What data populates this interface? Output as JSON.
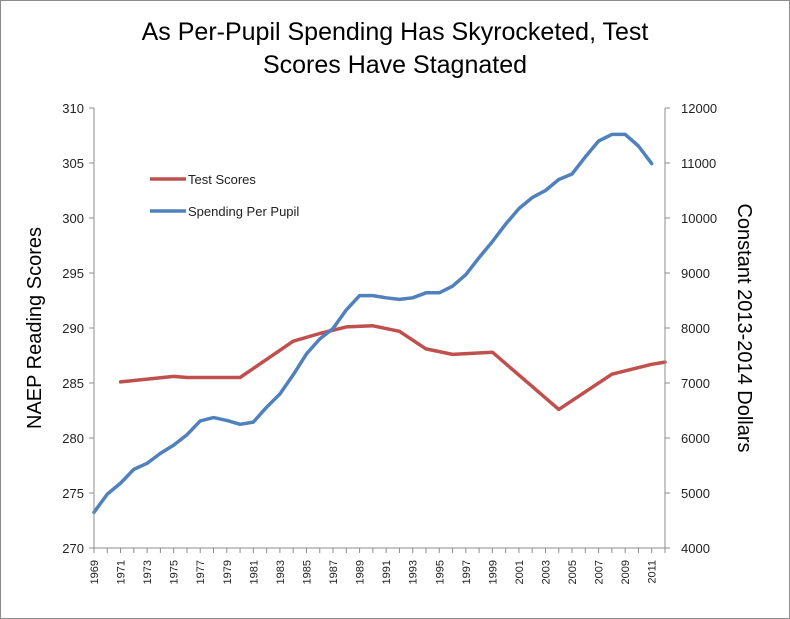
{
  "chart_data": {
    "type": "line",
    "title_lines": [
      "As Per-Pupil Spending Has Skyrocketed, Test",
      "Scores Have Stagnated"
    ],
    "ylabel_left": "NAEP Reading Scores",
    "ylabel_right": "Constant 2013-2014 Dollars",
    "ylim_left": [
      270,
      310
    ],
    "ylim_right": [
      4000,
      12000
    ],
    "yticks_left": [
      "270",
      "275",
      "280",
      "285",
      "290",
      "295",
      "300",
      "305",
      "310"
    ],
    "yticks_right": [
      "4000",
      "5000",
      "6000",
      "7000",
      "8000",
      "9000",
      "10000",
      "11000",
      "12000"
    ],
    "xlim": [
      1969,
      2012
    ],
    "xticks": [
      "1969",
      "1971",
      "1973",
      "1975",
      "1977",
      "1979",
      "1981",
      "1983",
      "1985",
      "1987",
      "1989",
      "1991",
      "1993",
      "1995",
      "1997",
      "1999",
      "2001",
      "2003",
      "2005",
      "2007",
      "2009",
      "2011"
    ],
    "grid": false,
    "legend_position": "upper-left-inside",
    "series": [
      {
        "name": "Test Scores",
        "axis": "left",
        "color": "#c0504d",
        "x": [
          1971,
          1975,
          1976,
          1980,
          1984,
          1986,
          1988,
          1990,
          1992,
          1994,
          1996,
          1999,
          2004,
          2008,
          2011,
          2012
        ],
        "y": [
          285.1,
          285.6,
          285.5,
          285.5,
          288.8,
          289.5,
          290.1,
          290.2,
          289.7,
          288.1,
          287.6,
          287.8,
          282.6,
          285.8,
          286.7,
          286.9
        ]
      },
      {
        "name": "Spending Per Pupil",
        "axis": "right",
        "color": "#4f81bd",
        "x": [
          1969,
          1970,
          1971,
          1972,
          1973,
          1974,
          1975,
          1976,
          1977,
          1978,
          1979,
          1980,
          1981,
          1982,
          1983,
          1984,
          1985,
          1986,
          1987,
          1988,
          1989,
          1990,
          1991,
          1992,
          1993,
          1994,
          1995,
          1996,
          1997,
          1998,
          1999,
          2000,
          2001,
          2002,
          2003,
          2004,
          2005,
          2006,
          2007,
          2008,
          2009,
          2010,
          2011
        ],
        "y": [
          4650,
          4980,
          5180,
          5430,
          5540,
          5720,
          5870,
          6060,
          6310,
          6370,
          6320,
          6250,
          6290,
          6560,
          6800,
          7150,
          7530,
          7800,
          7990,
          8330,
          8590,
          8590,
          8550,
          8520,
          8550,
          8640,
          8640,
          8760,
          8970,
          9280,
          9570,
          9890,
          10170,
          10370,
          10500,
          10700,
          10800,
          11110,
          11400,
          11520,
          11520,
          11310,
          10990
        ]
      }
    ]
  }
}
